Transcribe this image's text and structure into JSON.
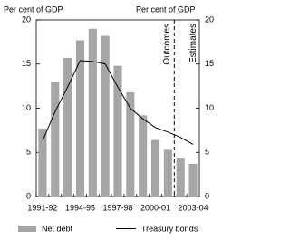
{
  "chart_data": {
    "type": "bar",
    "y_label": "Per cent of GDP",
    "y2_label": "Per cent of GDP",
    "annotations": [
      "Outcomes",
      "Estimates"
    ],
    "categories": [
      "1991-92",
      null,
      null,
      "1994-95",
      null,
      null,
      "1997-98",
      null,
      null,
      "2000-01",
      null,
      null,
      "2003-04"
    ],
    "series": [
      {
        "name": "Net debt",
        "type": "bar",
        "color": "#a6a6a6",
        "values": [
          7.7,
          13.0,
          15.7,
          17.7,
          19.0,
          18.2,
          14.8,
          11.8,
          9.2,
          6.4,
          5.3,
          4.3,
          3.7
        ]
      },
      {
        "name": "Treasury bonds",
        "type": "line",
        "axis": "y2",
        "color": "#000000",
        "values": [
          6.3,
          9.6,
          12.4,
          15.4,
          15.3,
          15.0,
          12.4,
          10.0,
          8.8,
          7.8,
          7.3,
          6.7,
          5.9
        ]
      }
    ],
    "ylim": [
      0,
      20
    ],
    "yticks": [
      0,
      5,
      10,
      15,
      20
    ],
    "y2lim": [
      0,
      20
    ],
    "y2ticks": [
      0,
      5,
      10,
      15,
      20
    ]
  }
}
